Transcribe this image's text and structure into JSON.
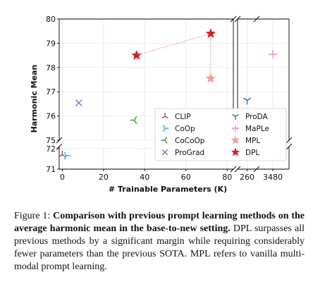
{
  "chart_data": {
    "type": "scatter",
    "xlabel": "# Trainable Parameters (K)",
    "ylabel": "Harmonic Mean",
    "x_ticks": [
      "0",
      "20",
      "40",
      "60",
      "80",
      "260",
      "3480"
    ],
    "y_ticks_upper": [
      "75",
      "76",
      "77",
      "78",
      "79",
      "80"
    ],
    "y_ticks_lower": [
      "71",
      "72"
    ],
    "y_upper_range": [
      75,
      80
    ],
    "y_lower_range": [
      71,
      72.1
    ],
    "x_main_range": [
      -1.5,
      83
    ],
    "grid": true,
    "legend_placement": "lower-right",
    "series": [
      {
        "name": "CLIP",
        "color": "#8c564b",
        "marker": "tri-up",
        "x": 0,
        "y": 71.7
      },
      {
        "name": "CoOp",
        "color": "#17becf",
        "marker": "tri-right",
        "x": 2,
        "y": 71.66
      },
      {
        "name": "CoCoOp",
        "color": "#2ca02c",
        "marker": "tri-left",
        "x": 35,
        "y": 75.83
      },
      {
        "name": "ProGrad",
        "color": "#9467bd",
        "marker": "x",
        "x": 8,
        "y": 76.54
      },
      {
        "name": "ProDA",
        "color": "#1f77b4",
        "marker": "tri-down",
        "x": 260,
        "y": 76.65
      },
      {
        "name": "MaPLe",
        "color": "#ff88c8",
        "marker": "plus",
        "x": 3480,
        "y": 78.55
      },
      {
        "name": "MPL",
        "color": "#f29a9a",
        "marker": "star",
        "x": 72,
        "y": 77.55
      },
      {
        "name": "DPL",
        "color": "#e8141c",
        "marker": "star",
        "x_points": [
          36,
          72
        ],
        "y_points": [
          78.5,
          79.4
        ]
      }
    ]
  },
  "caption": {
    "label": "Figure 1: ",
    "bold": "Comparison with previous prompt learning methods on the average harmonic mean in the base-to-new setting.",
    "text": " DPL surpasses all previous methods by a significant margin while requiring considerably fewer parameters than the previous SOTA. MPL refers to vanilla multi-modal prompt learning."
  }
}
